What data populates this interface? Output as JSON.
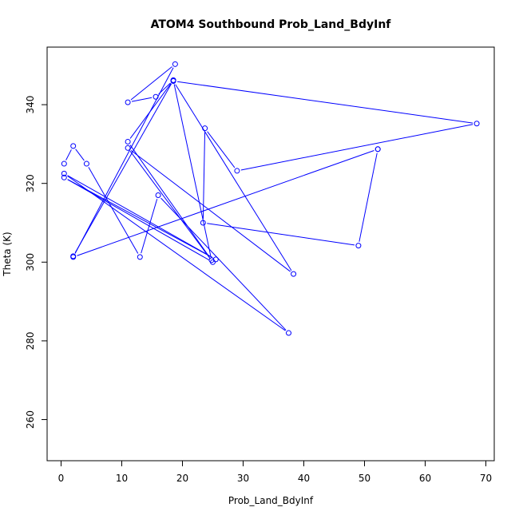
{
  "chart_data": {
    "type": "line",
    "title": "ATOM4 Southbound Prob_Land_BdyInf",
    "xlabel": "Prob_Land_BdyInf",
    "ylabel": "Theta (K)",
    "xlim": [
      0,
      70
    ],
    "ylim": [
      250,
      355
    ],
    "x_ticks": [
      0,
      10,
      20,
      30,
      40,
      50,
      60,
      70
    ],
    "y_ticks": [
      260,
      280,
      300,
      320,
      340
    ],
    "markers": "open-circle",
    "line_color": "#0000ff",
    "grid": false,
    "series": [
      {
        "points": [
          {
            "x": 0.5,
            "y": 325.0
          },
          {
            "x": 2.0,
            "y": 329.5
          },
          {
            "x": 4.2,
            "y": 325.0
          },
          {
            "x": 13.0,
            "y": 301.3
          },
          {
            "x": 16.0,
            "y": 317.0
          },
          {
            "x": 37.5,
            "y": 282.0
          },
          {
            "x": 0.5,
            "y": 322.5
          },
          {
            "x": 25.5,
            "y": 300.7
          },
          {
            "x": 0.5,
            "y": 321.5
          },
          {
            "x": 25.0,
            "y": 300.0
          },
          {
            "x": 11.0,
            "y": 329.0
          },
          {
            "x": 38.3,
            "y": 297.0
          },
          {
            "x": 18.5,
            "y": 346.0
          },
          {
            "x": 68.5,
            "y": 335.2
          },
          {
            "x": 29.0,
            "y": 323.2
          },
          {
            "x": 23.7,
            "y": 334.0
          },
          {
            "x": 23.4,
            "y": 310.0
          },
          {
            "x": 49.0,
            "y": 304.2
          },
          {
            "x": 52.2,
            "y": 328.7
          },
          {
            "x": 52.2,
            "y": 328.7
          },
          {
            "x": 2.0,
            "y": 301.3
          },
          {
            "x": 18.8,
            "y": 350.3
          },
          {
            "x": 11.0,
            "y": 340.6
          },
          {
            "x": 15.6,
            "y": 342.0
          },
          {
            "x": 18.5,
            "y": 346.2
          },
          {
            "x": 24.8,
            "y": 300.5
          },
          {
            "x": 11.0,
            "y": 330.6
          },
          {
            "x": 18.5,
            "y": 346.2
          },
          {
            "x": 2.0,
            "y": 301.5
          }
        ]
      }
    ]
  }
}
